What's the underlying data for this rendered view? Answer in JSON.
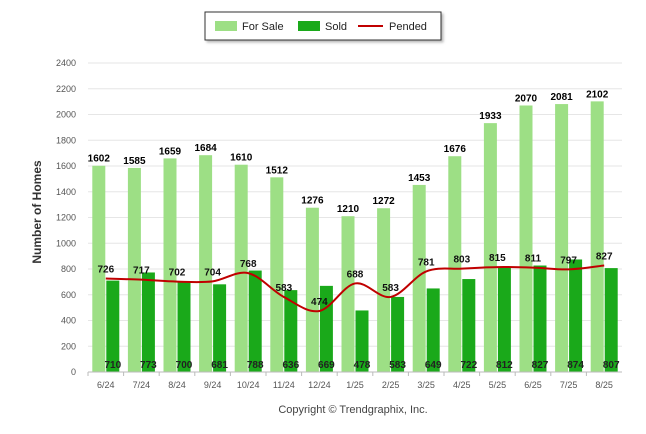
{
  "chart_data": {
    "type": "bar",
    "categories": [
      "6/24",
      "7/24",
      "8/24",
      "9/24",
      "10/24",
      "11/24",
      "12/24",
      "1/25",
      "2/25",
      "3/25",
      "4/25",
      "5/25",
      "6/25",
      "7/25",
      "8/25"
    ],
    "series": [
      {
        "name": "For Sale",
        "type": "bar",
        "color": "#9ddf85",
        "values": [
          1602,
          1585,
          1659,
          1684,
          1610,
          1512,
          1276,
          1210,
          1272,
          1453,
          1676,
          1933,
          2070,
          2081,
          2102
        ]
      },
      {
        "name": "Sold",
        "type": "bar",
        "color": "#1aa91a",
        "values": [
          710,
          773,
          700,
          681,
          788,
          636,
          669,
          478,
          583,
          649,
          722,
          812,
          827,
          874,
          807
        ]
      },
      {
        "name": "Pended",
        "type": "line",
        "color": "#c00000",
        "values": [
          726,
          717,
          702,
          704,
          768,
          583,
          474,
          688,
          583,
          781,
          803,
          815,
          811,
          797,
          827
        ]
      }
    ],
    "ylabel": "Number of Homes",
    "xlabel": "",
    "ylim": [
      0,
      2400
    ],
    "yticks": [
      0,
      200,
      400,
      600,
      800,
      1000,
      1200,
      1400,
      1600,
      1800,
      2000,
      2200,
      2400
    ],
    "grid": true,
    "legend_position": "top-center",
    "copyright": "Copyright © Trendgraphix, Inc."
  }
}
